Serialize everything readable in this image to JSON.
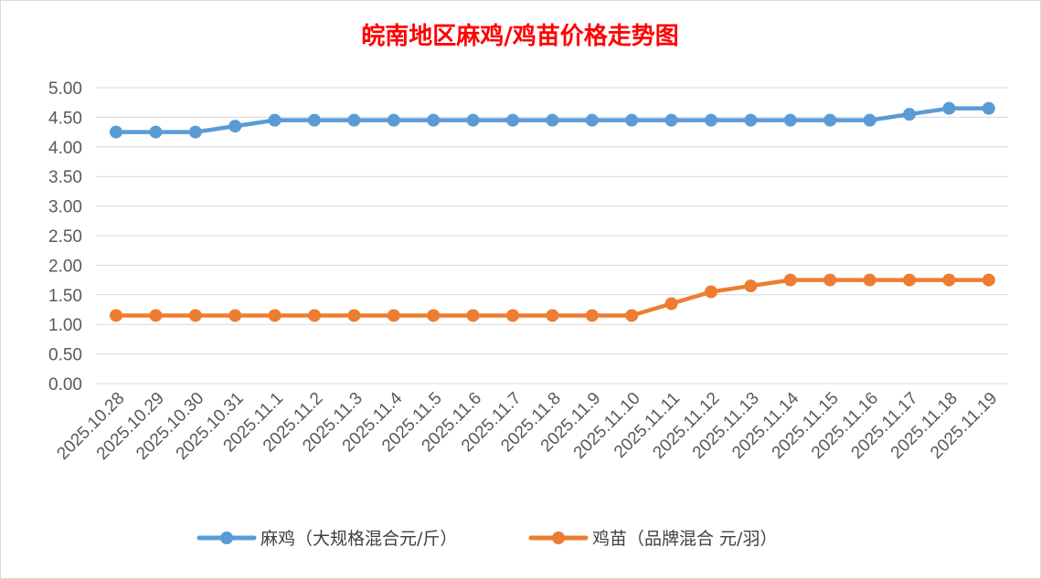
{
  "chart_data": {
    "type": "line",
    "title": "皖南地区麻鸡/鸡苗价格走势图",
    "title_color": "#ff0000",
    "categories": [
      "2025.10.28",
      "2025.10.29",
      "2025.10.30",
      "2025.10.31",
      "2025.11.1",
      "2025.11.2",
      "2025.11.3",
      "2025.11.4",
      "2025.11.5",
      "2025.11.6",
      "2025.11.7",
      "2025.11.8",
      "2025.11.9",
      "2025.11.10",
      "2025.11.11",
      "2025.11.12",
      "2025.11.13",
      "2025.11.14",
      "2025.11.15",
      "2025.11.16",
      "2025.11.17",
      "2025.11.18",
      "2025.11.19"
    ],
    "series": [
      {
        "name": "麻鸡（大规格混合元/斤）",
        "color": "#5b9bd5",
        "values": [
          4.25,
          4.25,
          4.25,
          4.35,
          4.45,
          4.45,
          4.45,
          4.45,
          4.45,
          4.45,
          4.45,
          4.45,
          4.45,
          4.45,
          4.45,
          4.45,
          4.45,
          4.45,
          4.45,
          4.45,
          4.55,
          4.65,
          4.65
        ]
      },
      {
        "name": "鸡苗（品牌混合 元/羽）",
        "color": "#ed7d31",
        "values": [
          1.15,
          1.15,
          1.15,
          1.15,
          1.15,
          1.15,
          1.15,
          1.15,
          1.15,
          1.15,
          1.15,
          1.15,
          1.15,
          1.15,
          1.35,
          1.55,
          1.65,
          1.75,
          1.75,
          1.75,
          1.75,
          1.75,
          1.75
        ]
      }
    ],
    "ylim": [
      0,
      5
    ],
    "yticks": [
      "0.00",
      "0.50",
      "1.00",
      "1.50",
      "2.00",
      "2.50",
      "3.00",
      "3.50",
      "4.00",
      "4.50",
      "5.00"
    ],
    "grid": true,
    "legend_position": "bottom"
  }
}
